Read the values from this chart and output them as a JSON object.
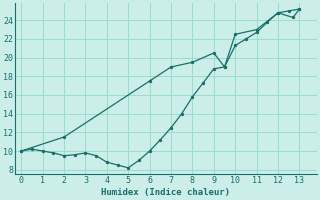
{
  "xlabel": "Humidex (Indice chaleur)",
  "bg_color": "#cceee8",
  "grid_color": "#99ddcc",
  "line_color": "#1a6e6e",
  "xlim": [
    -0.3,
    13.8
  ],
  "ylim": [
    7.5,
    25.8
  ],
  "xticks": [
    0,
    1,
    2,
    3,
    4,
    5,
    6,
    7,
    8,
    9,
    10,
    11,
    12,
    13
  ],
  "yticks": [
    8,
    10,
    12,
    14,
    16,
    18,
    20,
    22,
    24
  ],
  "line1_x": [
    0,
    0.5,
    1,
    1.5,
    2,
    2.5,
    3,
    3.5,
    4,
    4.5,
    5,
    5.5,
    6,
    6.5,
    7,
    7.5,
    8,
    8.5,
    9,
    9.5,
    10,
    10.5,
    11,
    11.5,
    12,
    12.5,
    13
  ],
  "line1_y": [
    10,
    10.2,
    10,
    9.8,
    9.5,
    9.6,
    9.8,
    9.5,
    8.8,
    8.5,
    8.2,
    9.0,
    10,
    11.2,
    12.5,
    14.0,
    15.8,
    17.3,
    18.8,
    19.0,
    21.3,
    22.0,
    22.7,
    23.8,
    24.8,
    25.0,
    25.2
  ],
  "line2_x": [
    0,
    2,
    6,
    7,
    8,
    9,
    9.5,
    10,
    11,
    12,
    12.7,
    13
  ],
  "line2_y": [
    10,
    11.5,
    17.5,
    19.0,
    19.5,
    20.5,
    19.0,
    22.5,
    23.0,
    24.8,
    24.3,
    25.2
  ]
}
